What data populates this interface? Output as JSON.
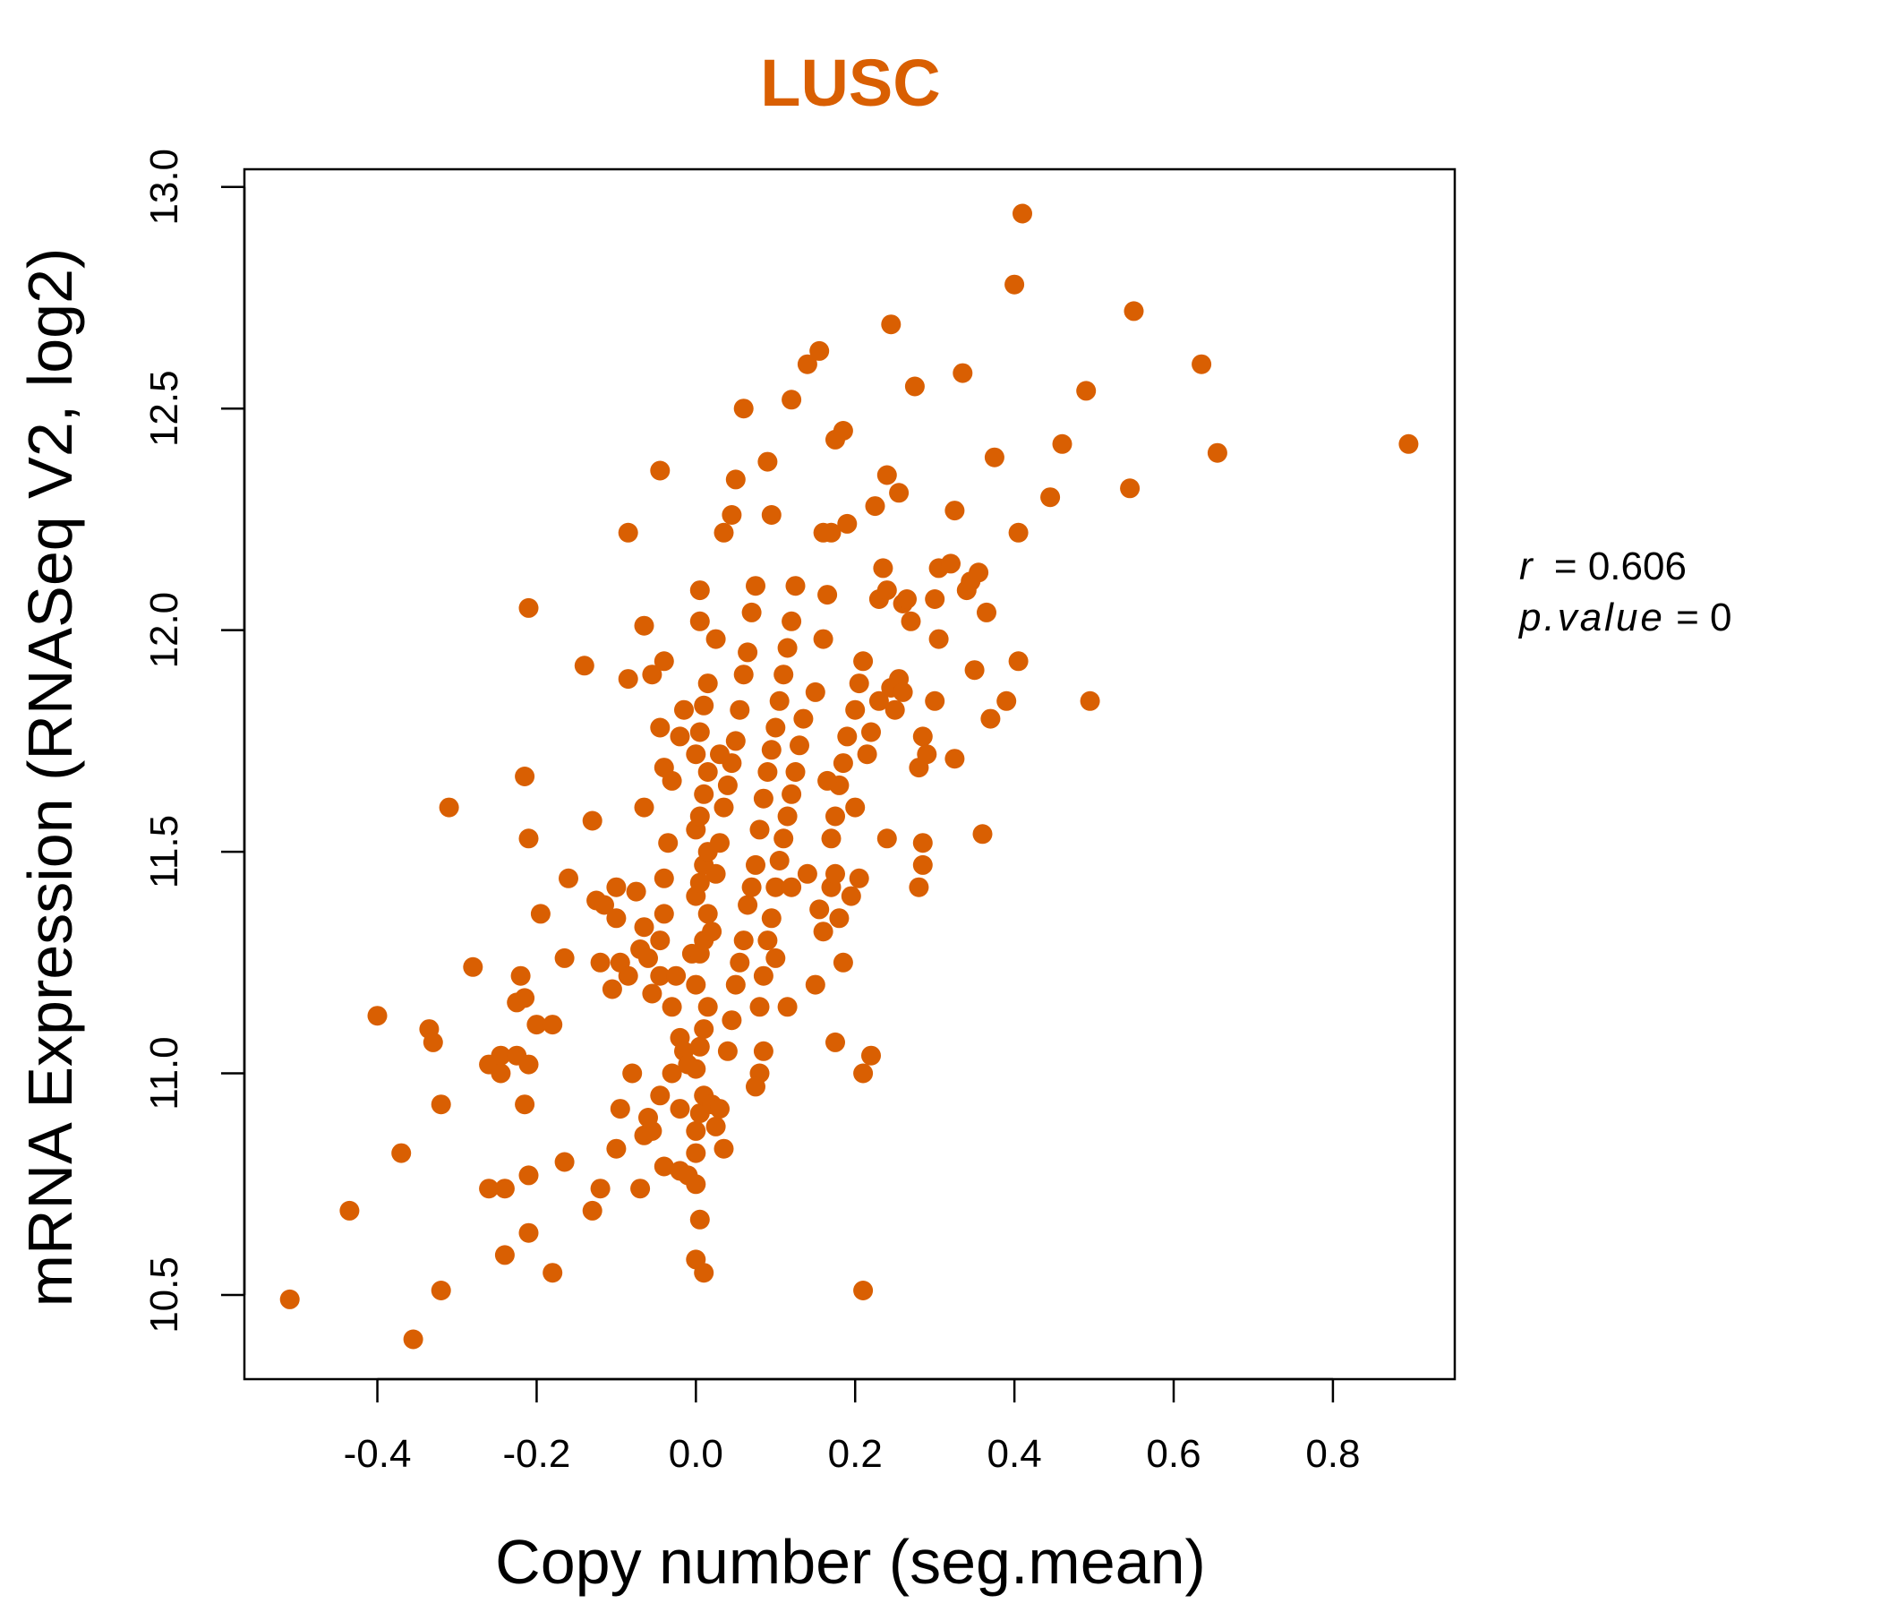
{
  "chart_data": {
    "type": "scatter",
    "title": "LUSC",
    "xlabel": "Copy number (seg.mean)",
    "ylabel": "mRNA Expression (RNASeq V2, log2)",
    "xlim": [
      -0.567,
      0.953
    ],
    "ylim": [
      10.31,
      13.04
    ],
    "xticks": [
      -0.4,
      -0.2,
      0.0,
      0.2,
      0.4,
      0.6,
      0.8
    ],
    "xtick_labels": [
      "-0.4",
      "-0.2",
      "0.0",
      "0.2",
      "0.4",
      "0.6",
      "0.8"
    ],
    "yticks": [
      10.5,
      11.0,
      11.5,
      12.0,
      12.5,
      13.0
    ],
    "ytick_labels": [
      "10.5",
      "11.0",
      "11.5",
      "12.0",
      "12.5",
      "13.0"
    ],
    "grid": false,
    "colors": {
      "accent": "#D95F02",
      "axis": "#000000"
    },
    "annotation": {
      "r_label": "r",
      "r_value": "0.606",
      "p_label": "p.value",
      "p_value": "0"
    },
    "series": [
      {
        "points": [
          [
            -0.51,
            10.49
          ],
          [
            -0.355,
            10.4
          ],
          [
            -0.32,
            10.51
          ],
          [
            -0.435,
            10.69
          ],
          [
            -0.37,
            10.82
          ],
          [
            -0.32,
            10.93
          ],
          [
            -0.4,
            11.13
          ],
          [
            -0.335,
            11.1
          ],
          [
            -0.33,
            11.07
          ],
          [
            -0.28,
            11.24
          ],
          [
            -0.31,
            11.6
          ],
          [
            -0.26,
            10.74
          ],
          [
            -0.24,
            10.74
          ],
          [
            -0.24,
            10.59
          ],
          [
            -0.21,
            10.64
          ],
          [
            -0.21,
            10.77
          ],
          [
            -0.18,
            10.55
          ],
          [
            -0.26,
            11.02
          ],
          [
            -0.245,
            11.04
          ],
          [
            -0.245,
            11.0
          ],
          [
            -0.225,
            11.04
          ],
          [
            -0.21,
            11.02
          ],
          [
            -0.215,
            10.93
          ],
          [
            -0.225,
            11.16
          ],
          [
            -0.215,
            11.17
          ],
          [
            -0.2,
            11.11
          ],
          [
            -0.18,
            11.11
          ],
          [
            -0.22,
            11.22
          ],
          [
            -0.195,
            11.36
          ],
          [
            -0.21,
            11.53
          ],
          [
            -0.215,
            11.67
          ],
          [
            -0.21,
            12.05
          ],
          [
            -0.165,
            10.8
          ],
          [
            -0.13,
            10.69
          ],
          [
            -0.12,
            10.74
          ],
          [
            -0.1,
            10.83
          ],
          [
            -0.07,
            10.74
          ],
          [
            -0.065,
            10.86
          ],
          [
            -0.055,
            10.87
          ],
          [
            -0.04,
            10.79
          ],
          [
            -0.02,
            10.78
          ],
          [
            -0.01,
            10.77
          ],
          [
            -0.095,
            10.92
          ],
          [
            -0.08,
            11.0
          ],
          [
            -0.06,
            10.9
          ],
          [
            -0.045,
            10.95
          ],
          [
            -0.03,
            11.0
          ],
          [
            -0.02,
            10.92
          ],
          [
            -0.165,
            11.26
          ],
          [
            -0.16,
            11.44
          ],
          [
            -0.14,
            11.92
          ],
          [
            -0.13,
            11.57
          ],
          [
            -0.125,
            11.39
          ],
          [
            -0.12,
            11.25
          ],
          [
            -0.115,
            11.38
          ],
          [
            -0.1,
            11.35
          ],
          [
            -0.1,
            11.42
          ],
          [
            -0.105,
            11.19
          ],
          [
            -0.095,
            11.25
          ],
          [
            -0.085,
            11.22
          ],
          [
            -0.075,
            11.41
          ],
          [
            -0.07,
            11.28
          ],
          [
            -0.065,
            11.33
          ],
          [
            -0.06,
            11.26
          ],
          [
            -0.055,
            11.18
          ],
          [
            -0.045,
            11.22
          ],
          [
            -0.045,
            11.3
          ],
          [
            -0.04,
            11.36
          ],
          [
            -0.04,
            11.44
          ],
          [
            -0.035,
            11.52
          ],
          [
            -0.03,
            11.15
          ],
          [
            -0.025,
            11.22
          ],
          [
            -0.02,
            11.08
          ],
          [
            -0.015,
            11.05
          ],
          [
            -0.01,
            11.02
          ],
          [
            -0.005,
            11.27
          ],
          [
            -0.065,
            11.6
          ],
          [
            -0.055,
            11.9
          ],
          [
            -0.045,
            11.78
          ],
          [
            -0.04,
            11.69
          ],
          [
            -0.03,
            11.66
          ],
          [
            -0.02,
            11.76
          ],
          [
            -0.015,
            11.82
          ],
          [
            -0.04,
            11.93
          ],
          [
            -0.065,
            12.01
          ],
          [
            -0.085,
            11.89
          ],
          [
            -0.085,
            12.22
          ],
          [
            -0.045,
            12.36
          ],
          [
            0.0,
            10.82
          ],
          [
            0.0,
            10.87
          ],
          [
            0.005,
            10.91
          ],
          [
            0.01,
            10.95
          ],
          [
            0.0,
            11.01
          ],
          [
            0.005,
            11.06
          ],
          [
            0.01,
            11.1
          ],
          [
            0.015,
            11.15
          ],
          [
            0.0,
            11.2
          ],
          [
            0.005,
            11.27
          ],
          [
            0.01,
            11.3
          ],
          [
            0.015,
            11.36
          ],
          [
            0.0,
            11.4
          ],
          [
            0.005,
            11.43
          ],
          [
            0.01,
            11.47
          ],
          [
            0.015,
            11.5
          ],
          [
            0.0,
            11.55
          ],
          [
            0.005,
            11.58
          ],
          [
            0.01,
            11.63
          ],
          [
            0.015,
            11.68
          ],
          [
            0.0,
            11.72
          ],
          [
            0.005,
            11.77
          ],
          [
            0.01,
            11.83
          ],
          [
            0.015,
            11.88
          ],
          [
            0.005,
            12.02
          ],
          [
            0.005,
            12.09
          ],
          [
            0.0,
            10.58
          ],
          [
            0.01,
            10.55
          ],
          [
            0.005,
            10.67
          ],
          [
            0.0,
            10.75
          ],
          [
            0.02,
            10.93
          ],
          [
            0.025,
            10.88
          ],
          [
            0.03,
            10.92
          ],
          [
            0.035,
            10.83
          ],
          [
            0.04,
            11.05
          ],
          [
            0.045,
            11.12
          ],
          [
            0.05,
            11.2
          ],
          [
            0.055,
            11.25
          ],
          [
            0.06,
            11.3
          ],
          [
            0.065,
            11.38
          ],
          [
            0.07,
            11.42
          ],
          [
            0.075,
            11.47
          ],
          [
            0.02,
            11.32
          ],
          [
            0.025,
            11.45
          ],
          [
            0.03,
            11.52
          ],
          [
            0.035,
            11.6
          ],
          [
            0.04,
            11.65
          ],
          [
            0.045,
            11.7
          ],
          [
            0.05,
            11.75
          ],
          [
            0.055,
            11.82
          ],
          [
            0.06,
            11.9
          ],
          [
            0.065,
            11.95
          ],
          [
            0.07,
            12.04
          ],
          [
            0.075,
            12.1
          ],
          [
            0.035,
            12.22
          ],
          [
            0.045,
            12.26
          ],
          [
            0.05,
            12.34
          ],
          [
            0.06,
            12.5
          ],
          [
            0.025,
            11.98
          ],
          [
            0.03,
            11.72
          ],
          [
            0.08,
            11.15
          ],
          [
            0.085,
            11.22
          ],
          [
            0.09,
            11.3
          ],
          [
            0.095,
            11.35
          ],
          [
            0.1,
            11.42
          ],
          [
            0.105,
            11.48
          ],
          [
            0.11,
            11.53
          ],
          [
            0.115,
            11.58
          ],
          [
            0.12,
            11.63
          ],
          [
            0.125,
            11.68
          ],
          [
            0.13,
            11.74
          ],
          [
            0.135,
            11.8
          ],
          [
            0.08,
            11.55
          ],
          [
            0.085,
            11.62
          ],
          [
            0.09,
            11.68
          ],
          [
            0.095,
            11.73
          ],
          [
            0.1,
            11.78
          ],
          [
            0.105,
            11.84
          ],
          [
            0.11,
            11.9
          ],
          [
            0.115,
            11.96
          ],
          [
            0.12,
            12.02
          ],
          [
            0.125,
            12.1
          ],
          [
            0.08,
            11.0
          ],
          [
            0.075,
            10.97
          ],
          [
            0.085,
            11.05
          ],
          [
            0.09,
            12.38
          ],
          [
            0.095,
            12.26
          ],
          [
            0.12,
            12.52
          ],
          [
            0.14,
            12.6
          ],
          [
            0.155,
            12.63
          ],
          [
            0.12,
            11.42
          ],
          [
            0.1,
            11.26
          ],
          [
            0.115,
            11.15
          ],
          [
            0.14,
            11.45
          ],
          [
            0.15,
            11.2
          ],
          [
            0.155,
            11.37
          ],
          [
            0.16,
            11.32
          ],
          [
            0.17,
            11.42
          ],
          [
            0.175,
            11.58
          ],
          [
            0.18,
            11.65
          ],
          [
            0.185,
            11.7
          ],
          [
            0.19,
            11.76
          ],
          [
            0.2,
            11.82
          ],
          [
            0.205,
            11.88
          ],
          [
            0.21,
            11.93
          ],
          [
            0.15,
            11.86
          ],
          [
            0.16,
            11.98
          ],
          [
            0.165,
            12.08
          ],
          [
            0.17,
            12.22
          ],
          [
            0.175,
            12.43
          ],
          [
            0.185,
            12.45
          ],
          [
            0.19,
            12.24
          ],
          [
            0.16,
            12.22
          ],
          [
            0.165,
            11.66
          ],
          [
            0.17,
            11.53
          ],
          [
            0.175,
            11.45
          ],
          [
            0.18,
            11.35
          ],
          [
            0.185,
            11.25
          ],
          [
            0.175,
            11.07
          ],
          [
            0.195,
            11.4
          ],
          [
            0.2,
            11.6
          ],
          [
            0.205,
            11.44
          ],
          [
            0.21,
            11.0
          ],
          [
            0.21,
            10.51
          ],
          [
            0.22,
            11.04
          ],
          [
            0.215,
            11.72
          ],
          [
            0.22,
            11.77
          ],
          [
            0.23,
            11.84
          ],
          [
            0.225,
            12.28
          ],
          [
            0.23,
            12.07
          ],
          [
            0.235,
            12.14
          ],
          [
            0.24,
            12.09
          ],
          [
            0.245,
            11.87
          ],
          [
            0.25,
            11.82
          ],
          [
            0.24,
            12.35
          ],
          [
            0.245,
            12.69
          ],
          [
            0.255,
            12.31
          ],
          [
            0.26,
            12.06
          ],
          [
            0.265,
            12.07
          ],
          [
            0.27,
            12.02
          ],
          [
            0.275,
            12.55
          ],
          [
            0.24,
            11.53
          ],
          [
            0.255,
            11.89
          ],
          [
            0.26,
            11.86
          ],
          [
            0.28,
            11.69
          ],
          [
            0.285,
            11.52
          ],
          [
            0.285,
            11.47
          ],
          [
            0.28,
            11.42
          ],
          [
            0.285,
            11.76
          ],
          [
            0.29,
            11.72
          ],
          [
            0.3,
            11.84
          ],
          [
            0.305,
            11.98
          ],
          [
            0.3,
            12.07
          ],
          [
            0.305,
            12.14
          ],
          [
            0.32,
            12.15
          ],
          [
            0.325,
            11.71
          ],
          [
            0.325,
            12.27
          ],
          [
            0.335,
            12.58
          ],
          [
            0.34,
            12.09
          ],
          [
            0.345,
            12.11
          ],
          [
            0.35,
            11.91
          ],
          [
            0.355,
            12.13
          ],
          [
            0.36,
            11.54
          ],
          [
            0.365,
            12.04
          ],
          [
            0.37,
            11.8
          ],
          [
            0.375,
            12.39
          ],
          [
            0.39,
            11.84
          ],
          [
            0.4,
            12.78
          ],
          [
            0.405,
            12.22
          ],
          [
            0.405,
            11.93
          ],
          [
            0.41,
            12.94
          ],
          [
            0.445,
            12.3
          ],
          [
            0.46,
            12.42
          ],
          [
            0.49,
            12.54
          ],
          [
            0.495,
            11.84
          ],
          [
            0.545,
            12.32
          ],
          [
            0.55,
            12.72
          ],
          [
            0.635,
            12.6
          ],
          [
            0.655,
            12.4
          ],
          [
            0.895,
            12.42
          ]
        ]
      }
    ]
  }
}
